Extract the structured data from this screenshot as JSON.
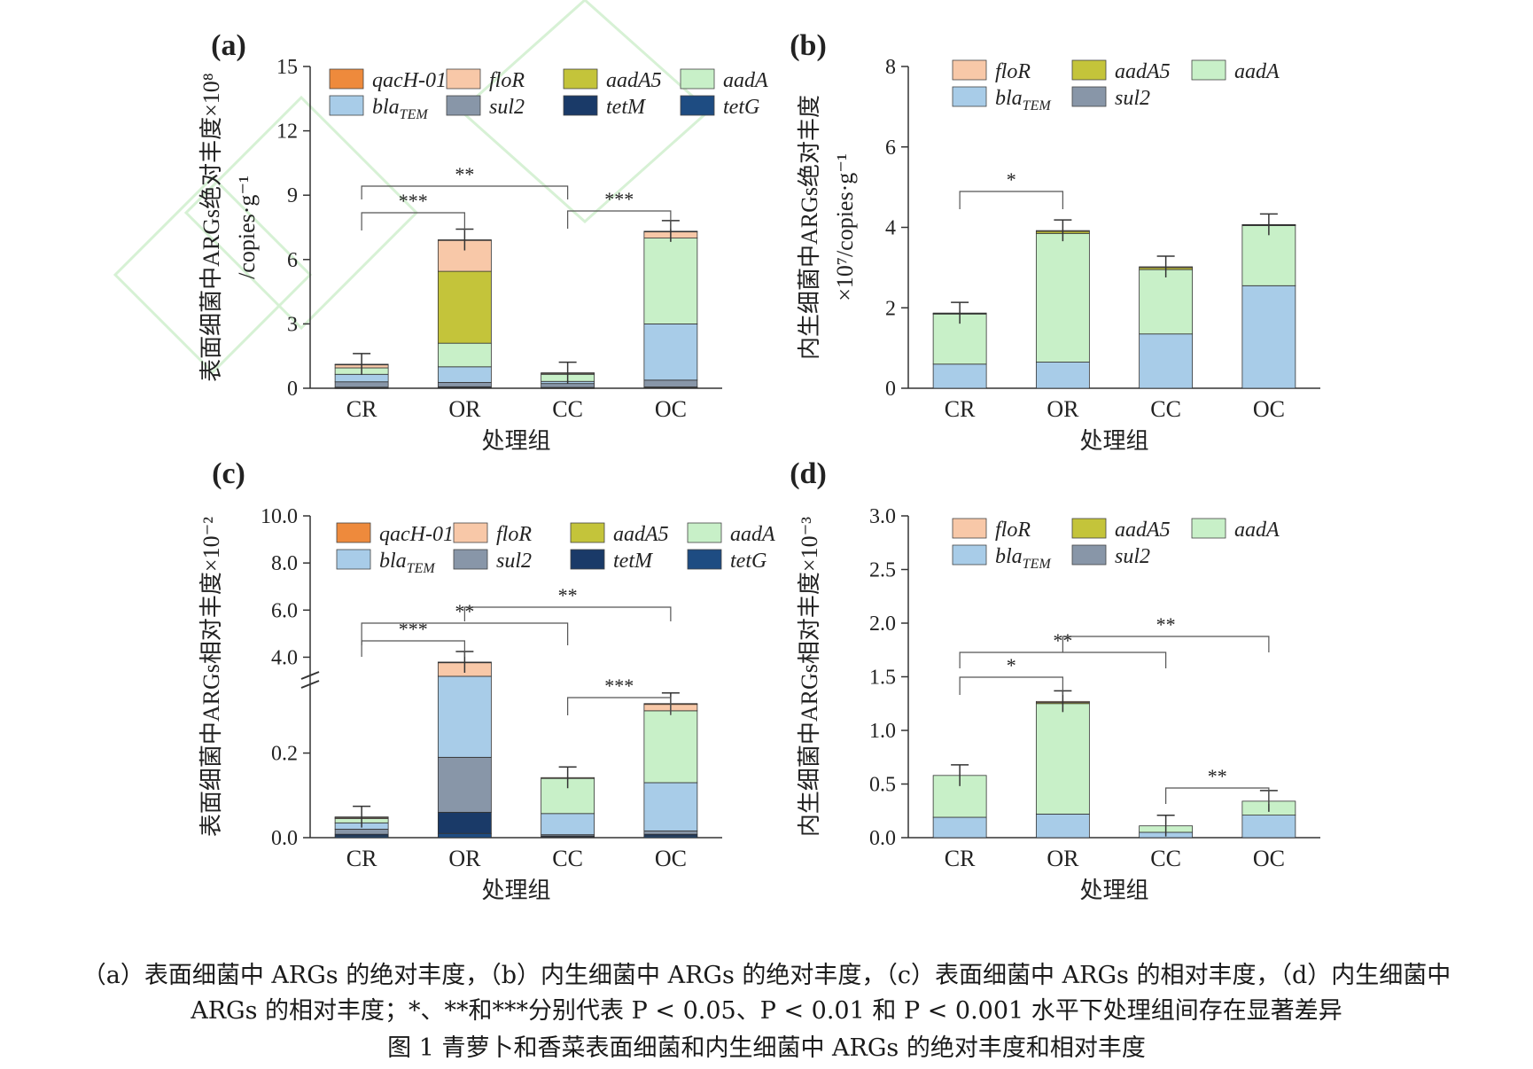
{
  "colors": {
    "qacH-01": "#ee8a3c",
    "floR": "#f8c8a8",
    "aadA5": "#c4c43a",
    "aadA": "#c8f0c8",
    "blaTEM": "#a8cce8",
    "sul2": "#8896a8",
    "tetM": "#1a3a68",
    "tetG": "#1e4c82",
    "watermark": "#cdeeca"
  },
  "chart_data": [
    {
      "panel_label": "(a)",
      "type": "bar",
      "stacked": true,
      "categories": [
        "CR",
        "OR",
        "CC",
        "OC"
      ],
      "xlabel": "处理组",
      "ylabel": [
        "表面细菌中ARGs绝对丰度×10⁸",
        "/copies·g⁻¹"
      ],
      "ylim": [
        0,
        15
      ],
      "yticks": [
        0,
        3,
        6,
        9,
        12,
        15
      ],
      "legend": [
        "qacH-01",
        "floR",
        "aadA5",
        "aadA",
        "blaTEM",
        "sul2",
        "tetM",
        "tetG"
      ],
      "series": [
        {
          "name": "tetG",
          "values": [
            0.02,
            0.03,
            0.02,
            0.03
          ]
        },
        {
          "name": "tetM",
          "values": [
            0.03,
            0.04,
            0.02,
            0.03
          ]
        },
        {
          "name": "sul2",
          "values": [
            0.25,
            0.2,
            0.18,
            0.32
          ]
        },
        {
          "name": "blaTEM",
          "values": [
            0.35,
            0.73,
            0.1,
            2.62
          ]
        },
        {
          "name": "aadA",
          "values": [
            0.3,
            1.1,
            0.33,
            4.0
          ]
        },
        {
          "name": "aadA5",
          "values": [
            0.0,
            3.35,
            0.0,
            0.0
          ]
        },
        {
          "name": "floR",
          "values": [
            0.15,
            1.45,
            0.05,
            0.3
          ]
        },
        {
          "name": "qacH-01",
          "values": [
            0.02,
            0.02,
            0.02,
            0.02
          ]
        }
      ],
      "significance": [
        {
          "pair": [
            "CR",
            "OR"
          ],
          "label": "***"
        },
        {
          "pair": [
            "CR",
            "CC"
          ],
          "label": "**"
        },
        {
          "pair": [
            "CC",
            "OC"
          ],
          "label": "***"
        }
      ]
    },
    {
      "panel_label": "(b)",
      "type": "bar",
      "stacked": true,
      "categories": [
        "CR",
        "OR",
        "CC",
        "OC"
      ],
      "xlabel": "处理组",
      "ylabel": [
        "内生细菌中ARGs绝对丰度",
        "×10⁷/copies·g⁻¹"
      ],
      "ylim": [
        0,
        8
      ],
      "yticks": [
        0,
        2,
        4,
        6,
        8
      ],
      "legend": [
        "floR",
        "aadA5",
        "aadA",
        "blaTEM",
        "sul2"
      ],
      "series": [
        {
          "name": "sul2",
          "values": [
            0.0,
            0.0,
            0.0,
            0.0
          ]
        },
        {
          "name": "blaTEM",
          "values": [
            0.6,
            0.65,
            1.35,
            2.55
          ]
        },
        {
          "name": "aadA",
          "values": [
            1.25,
            3.2,
            1.6,
            1.5
          ]
        },
        {
          "name": "aadA5",
          "values": [
            0.01,
            0.05,
            0.05,
            0.01
          ]
        },
        {
          "name": "floR",
          "values": [
            0.01,
            0.02,
            0.02,
            0.01
          ]
        }
      ],
      "significance": [
        {
          "pair": [
            "CR",
            "OR"
          ],
          "label": "*"
        }
      ]
    },
    {
      "panel_label": "(c)",
      "type": "bar",
      "stacked": true,
      "broken_axis": true,
      "categories": [
        "CR",
        "OR",
        "CC",
        "OC"
      ],
      "xlabel": "处理组",
      "ylabel": [
        "表面细菌中ARGs相对丰度×10⁻²"
      ],
      "ylim": [
        0,
        10
      ],
      "yticks_lower": [
        "0.0",
        "0.2"
      ],
      "yticks_upper": [
        "4.0",
        "6.0",
        "8.0",
        "10.0"
      ],
      "legend": [
        "qacH-01",
        "floR",
        "aadA5",
        "aadA",
        "blaTEM",
        "sul2",
        "tetM",
        "tetG"
      ],
      "series": [
        {
          "name": "tetG",
          "values": [
            0.004,
            0.01,
            0.002,
            0.004
          ]
        },
        {
          "name": "tetM",
          "values": [
            0.004,
            0.05,
            0.002,
            0.004
          ]
        },
        {
          "name": "sul2",
          "values": [
            0.012,
            0.13,
            0.003,
            0.008
          ]
        },
        {
          "name": "blaTEM",
          "values": [
            0.015,
            3.0,
            0.05,
            0.114
          ]
        },
        {
          "name": "aadA",
          "values": [
            0.01,
            0.0,
            0.083,
            0.17
          ]
        },
        {
          "name": "aadA5",
          "values": [
            0.0,
            0.0,
            0.0,
            0.0
          ]
        },
        {
          "name": "floR",
          "values": [
            0.003,
            0.6,
            0.002,
            0.015
          ]
        },
        {
          "name": "qacH-01",
          "values": [
            0.001,
            0.001,
            0.0,
            0.002
          ]
        }
      ],
      "significance": [
        {
          "pair": [
            "CR",
            "OR"
          ],
          "label": "***"
        },
        {
          "pair": [
            "CR",
            "CC"
          ],
          "label": "**"
        },
        {
          "pair": [
            "OR",
            "OC"
          ],
          "label": "**"
        },
        {
          "pair": [
            "CC",
            "OC"
          ],
          "label": "***"
        }
      ]
    },
    {
      "panel_label": "(d)",
      "type": "bar",
      "stacked": true,
      "categories": [
        "CR",
        "OR",
        "CC",
        "OC"
      ],
      "xlabel": "处理组",
      "ylabel": [
        "内生细菌中ARGs相对丰度×10⁻³"
      ],
      "ylim": [
        0,
        3.0
      ],
      "yticks": [
        "0.0",
        "0.5",
        "1.0",
        "1.5",
        "2.0",
        "2.5",
        "3.0"
      ],
      "legend": [
        "floR",
        "aadA5",
        "aadA",
        "blaTEM",
        "sul2"
      ],
      "series": [
        {
          "name": "sul2",
          "values": [
            0.0,
            0.0,
            0.0,
            0.0
          ]
        },
        {
          "name": "blaTEM",
          "values": [
            0.19,
            0.22,
            0.05,
            0.21
          ]
        },
        {
          "name": "aadA",
          "values": [
            0.39,
            1.03,
            0.06,
            0.13
          ]
        },
        {
          "name": "aadA5",
          "values": [
            0.0,
            0.01,
            0.0,
            0.0
          ]
        },
        {
          "name": "floR",
          "values": [
            0.0,
            0.01,
            0.0,
            0.0
          ]
        }
      ],
      "significance": [
        {
          "pair": [
            "CR",
            "OR"
          ],
          "label": "*"
        },
        {
          "pair": [
            "CR",
            "CC"
          ],
          "label": "**"
        },
        {
          "pair": [
            "OR",
            "OC"
          ],
          "label": "**"
        },
        {
          "pair": [
            "CC",
            "OC"
          ],
          "label": "**"
        }
      ]
    }
  ],
  "caption": {
    "line1": "（a）表面细菌中 ARGs 的绝对丰度，（b）内生细菌中 ARGs 的绝对丰度，（c）表面细菌中 ARGs 的相对丰度，（d）内生细菌中",
    "line2": "ARGs 的相对丰度；*、**和***分别代表 P < 0.05、P < 0.01 和 P < 0.001 水平下处理组间存在显著差异",
    "line3": "图 1 青萝卜和香菜表面细菌和内生细菌中 ARGs 的绝对丰度和相对丰度"
  }
}
